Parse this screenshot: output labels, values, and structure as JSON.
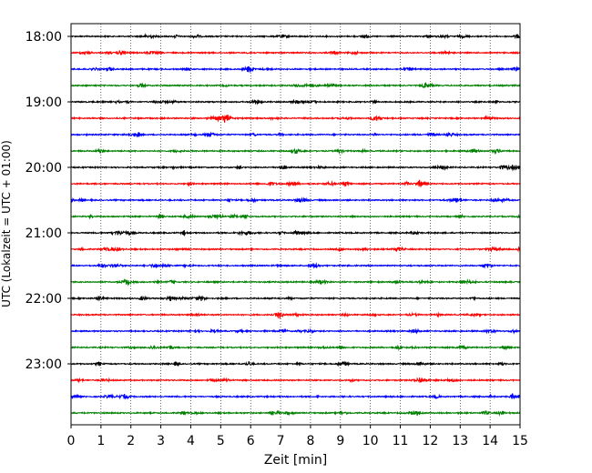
{
  "chart_data": {
    "type": "line",
    "title": "",
    "xlabel": "Zeit  [min]",
    "ylabel": "UTC (Lokalzeit = UTC + 01:00)",
    "xlim": [
      0,
      15
    ],
    "x_ticks": [
      0,
      1,
      2,
      3,
      4,
      5,
      6,
      7,
      8,
      9,
      10,
      11,
      12,
      13,
      14,
      15
    ],
    "x_tick_labels": [
      "0",
      "1",
      "2",
      "3",
      "4",
      "5",
      "6",
      "7",
      "8",
      "9",
      "10",
      "11",
      "12",
      "13",
      "14",
      "15"
    ],
    "y_tick_labels": [
      "18:00",
      "19:00",
      "20:00",
      "21:00",
      "22:00",
      "23:00"
    ],
    "trace_interval_min": 15,
    "first_trace": "18:00",
    "trace_count": 24,
    "trace_colors": [
      "#000000",
      "#ff0000",
      "#0000ff",
      "#008000"
    ],
    "vertical_grid": true,
    "grid_style": "dotted",
    "waveform": "low-amplitude background noise on every trace"
  }
}
